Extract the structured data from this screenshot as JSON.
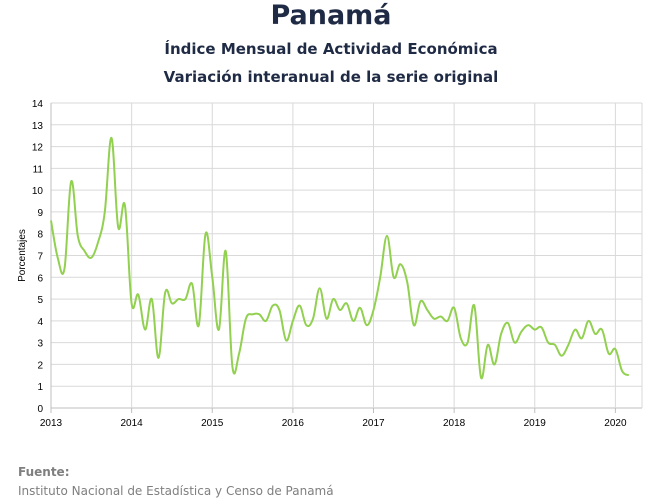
{
  "header": {
    "title": "Panamá",
    "subtitle1": "Índice Mensual de Actividad Económica",
    "subtitle2": "Variación interanual de la serie original"
  },
  "footer": {
    "label": "Fuente:",
    "source": "Instituto Nacional de Estadística y Censo de Panamá"
  },
  "colors": {
    "line": "#92d050",
    "grid": "#d9d9d9",
    "axis": "#bfbfbf",
    "text": "#1f2a44"
  },
  "chart_data": {
    "type": "line",
    "title": "Panamá",
    "subtitle": [
      "Índice Mensual de Actividad Económica",
      "Variación interanual de la serie original"
    ],
    "xlabel": "",
    "ylabel": "Porcentajes",
    "xlim": [
      2013,
      2020.33
    ],
    "ylim": [
      0,
      14
    ],
    "xticks": [
      "2013",
      "2014",
      "2015",
      "2016",
      "2017",
      "2018",
      "2019",
      "2020"
    ],
    "yticks": [
      "0",
      "1",
      "2",
      "3",
      "4",
      "5",
      "6",
      "7",
      "8",
      "9",
      "10",
      "11",
      "12",
      "13",
      "14"
    ],
    "grid": true,
    "series": [
      {
        "x": [
          2013.0,
          2013.083,
          2013.167,
          2013.25,
          2013.333,
          2013.417,
          2013.5,
          2013.583,
          2013.667,
          2013.75,
          2013.833,
          2013.917,
          2014.0,
          2014.083,
          2014.167,
          2014.25,
          2014.333,
          2014.417,
          2014.5,
          2014.583,
          2014.667,
          2014.75,
          2014.833,
          2014.917,
          2015.0,
          2015.083,
          2015.167,
          2015.25,
          2015.333,
          2015.417,
          2015.5,
          2015.583,
          2015.667,
          2015.75,
          2015.833,
          2015.917,
          2016.0,
          2016.083,
          2016.167,
          2016.25,
          2016.333,
          2016.417,
          2016.5,
          2016.583,
          2016.667,
          2016.75,
          2016.833,
          2016.917,
          2017.0,
          2017.083,
          2017.167,
          2017.25,
          2017.333,
          2017.417,
          2017.5,
          2017.583,
          2017.667,
          2017.75,
          2017.833,
          2017.917,
          2018.0,
          2018.083,
          2018.167,
          2018.25,
          2018.333,
          2018.417,
          2018.5,
          2018.583,
          2018.667,
          2018.75,
          2018.833,
          2018.917,
          2019.0,
          2019.083,
          2019.167,
          2019.25,
          2019.333,
          2019.417,
          2019.5,
          2019.583,
          2019.667,
          2019.75,
          2019.833,
          2019.917,
          2020.0,
          2020.083,
          2020.167
        ],
        "values": [
          8.6,
          6.9,
          6.4,
          10.4,
          7.9,
          7.2,
          6.9,
          7.6,
          9.0,
          12.4,
          8.3,
          9.3,
          4.8,
          5.2,
          3.6,
          5.0,
          2.3,
          5.3,
          4.8,
          5.0,
          5.0,
          5.7,
          3.8,
          8.0,
          6.0,
          3.6,
          7.2,
          1.9,
          2.5,
          4.1,
          4.3,
          4.3,
          4.0,
          4.7,
          4.5,
          3.1,
          4.0,
          4.7,
          3.8,
          4.1,
          5.5,
          4.1,
          5.0,
          4.5,
          4.8,
          4.0,
          4.6,
          3.8,
          4.5,
          6.0,
          7.9,
          6.0,
          6.6,
          5.8,
          3.8,
          4.9,
          4.5,
          4.1,
          4.2,
          4.0,
          4.6,
          3.2,
          3.0,
          4.7,
          1.4,
          2.9,
          2.0,
          3.4,
          3.9,
          3.0,
          3.5,
          3.8,
          3.6,
          3.7,
          3.0,
          2.9,
          2.4,
          2.9,
          3.6,
          3.2,
          4.0,
          3.4,
          3.6,
          2.5,
          2.7,
          1.7,
          1.5
        ]
      }
    ]
  }
}
